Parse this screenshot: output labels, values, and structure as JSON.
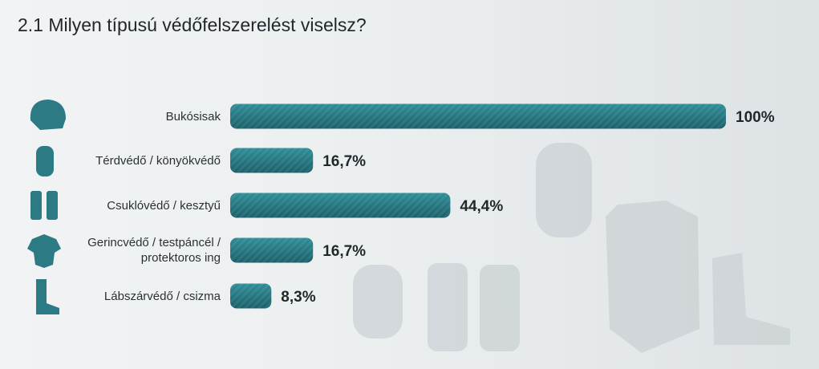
{
  "chart_data": {
    "type": "hbar",
    "title": "2.1 Milyen típusú védőfelszerelést viselsz?",
    "categories": [
      "Bukósisak",
      "Térdvédő / könyökvédő",
      "Csuklóvédő / kesztyű",
      "Gerincvédő / testpáncél / protektoros ing",
      "Lábszárvédő / csizma"
    ],
    "values": [
      100,
      16.7,
      44.4,
      16.7,
      8.3
    ],
    "value_labels": [
      "100%",
      "16,7%",
      "44,4%",
      "16,7%",
      "8,3%"
    ],
    "color": "#23727c"
  }
}
